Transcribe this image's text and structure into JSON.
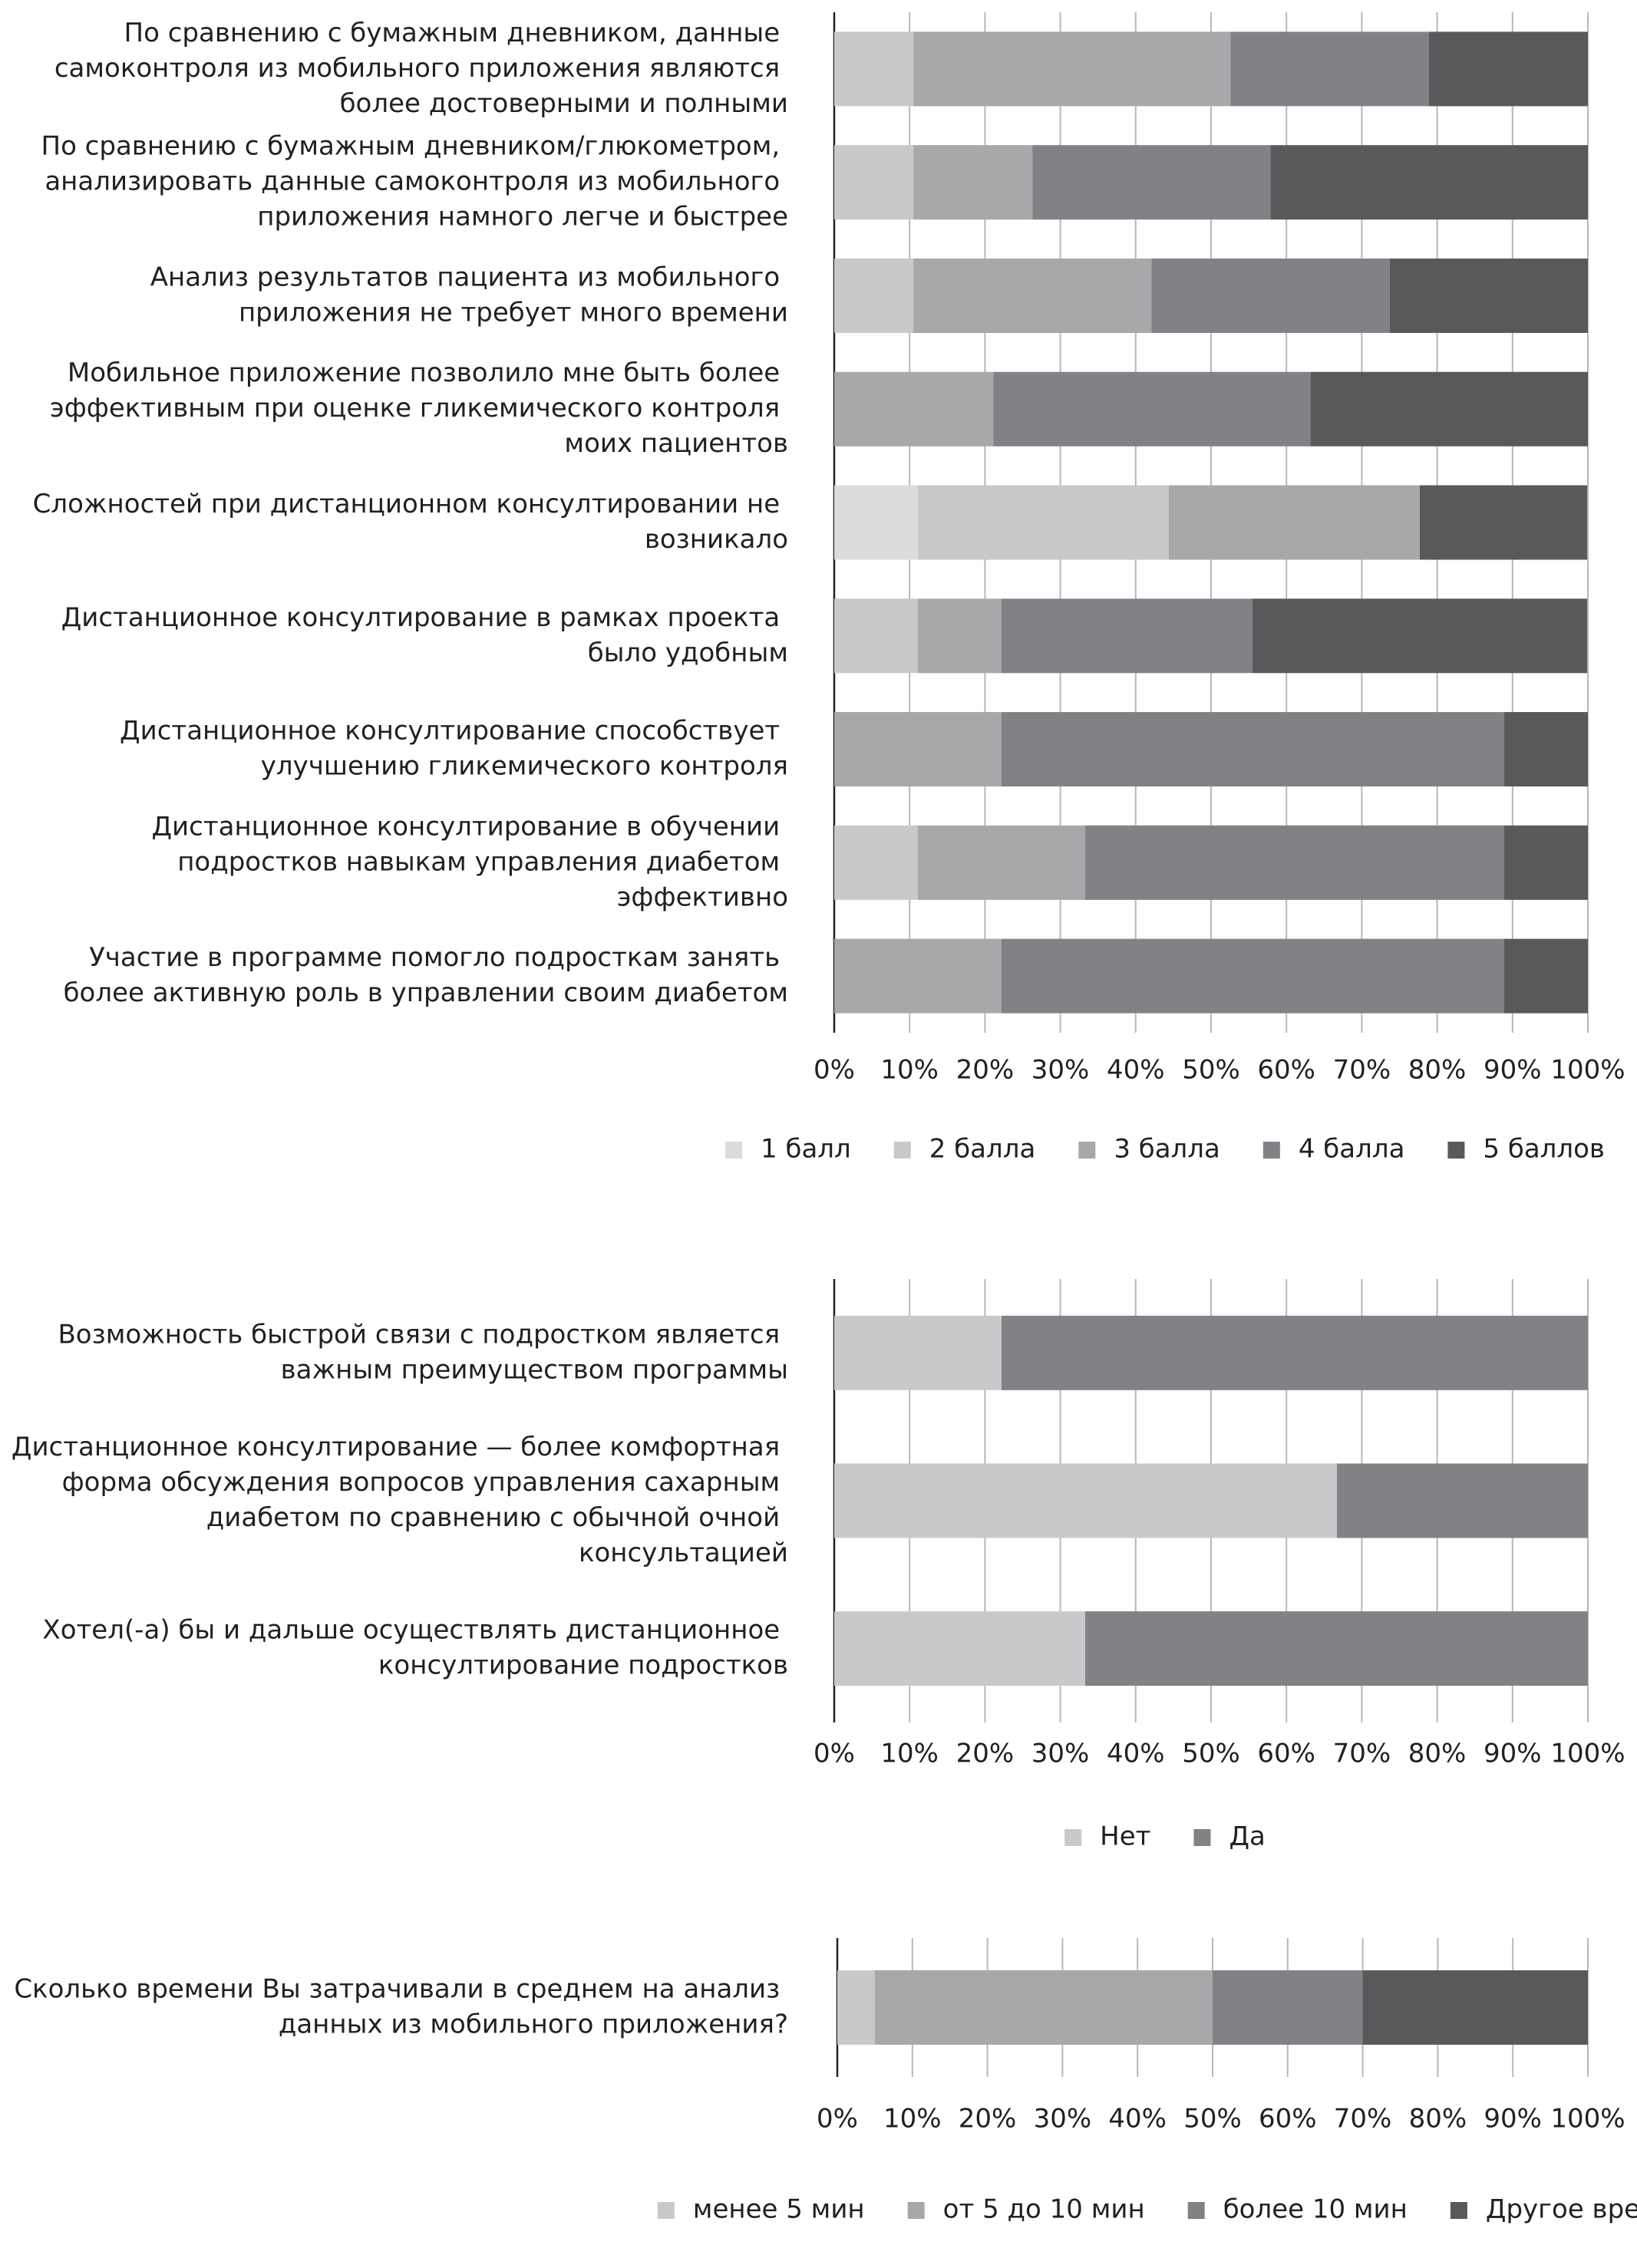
{
  "chart_data": [
    {
      "type": "bar",
      "orientation": "horizontal",
      "stacked": true,
      "grid": true,
      "categories": [
        "По сравнению с бумажным дневником, данные самоконтроля из мобильного приложения являются более достоверными и полными",
        "По сравнению с бумажным дневником/глюкометром, анализировать данные самоконтроля из мобильного приложения намного легче и быстрее",
        "Анализ результатов пациента из мобильного приложения не требует много времени",
        "Мобильное приложение  позволило мне быть более эффективным при оценке гликемического контроля моих пациентов",
        "Сложностей при дистанционном консултировании не возникало",
        "Дистанционное консултирование в рамках проекта было удобным",
        "Дистанционное консултирование способствует улучшению гликемического контроля",
        "Дистанционное консултирование в обучении подростков навыкам управления диабетом эффективно",
        "Участие в программе помогло подросткам занять более активную роль в управлении своим диабетом"
      ],
      "series": [
        {
          "name": "1 балл",
          "color": "#dcdcdd",
          "values": [
            0,
            0,
            0,
            0,
            11.1,
            0,
            0,
            0,
            0
          ]
        },
        {
          "name": "2 балла",
          "color": "#c8c9ca",
          "values": [
            10.5,
            10.5,
            10.5,
            0,
            33.3,
            11.1,
            0,
            11.1,
            0
          ]
        },
        {
          "name": "3 балла",
          "color": "#a7a8aa",
          "values": [
            42.1,
            15.8,
            31.6,
            21.1,
            33.3,
            11.1,
            22.2,
            22.2,
            22.2
          ]
        },
        {
          "name": "4 балла",
          "color": "#818285",
          "values": [
            26.3,
            31.6,
            31.6,
            42.1,
            0,
            33.3,
            66.7,
            55.6,
            66.7
          ]
        },
        {
          "name": "5 баллов",
          "color": "#58595b",
          "values": [
            21.1,
            42.1,
            26.3,
            36.8,
            22.2,
            44.4,
            11.1,
            11.1,
            11.1
          ]
        }
      ],
      "xlim": [
        0,
        100
      ],
      "xticks": [
        {
          "value": 0,
          "label": "0%"
        },
        {
          "value": 10,
          "label": "10%"
        },
        {
          "value": 20,
          "label": "20%"
        },
        {
          "value": 30,
          "label": "30%"
        },
        {
          "value": 40,
          "label": "40%"
        },
        {
          "value": 50,
          "label": "50%"
        },
        {
          "value": 60,
          "label": "60%"
        },
        {
          "value": 70,
          "label": "70%"
        },
        {
          "value": 80,
          "label": "80%"
        },
        {
          "value": 90,
          "label": "90%"
        },
        {
          "value": 100,
          "label": "100%"
        }
      ]
    },
    {
      "type": "bar",
      "orientation": "horizontal",
      "stacked": true,
      "grid": true,
      "categories": [
        "Возможность быстрой связи с подростком является важным преимуществом программы",
        "Дистанционное консултирование — более комфортная форма обсуждения вопросов управления сахарным диабетом по сравнению с обычной очной консультацией",
        "Хотел(-а) бы и дальше осуществлять дистанционное консултирование подростков"
      ],
      "series": [
        {
          "name": "Нет",
          "color": "#c8c9ca",
          "values": [
            22.2,
            66.7,
            33.3
          ]
        },
        {
          "name": "Да",
          "color": "#818285",
          "values": [
            77.8,
            33.3,
            66.7
          ]
        }
      ],
      "xlim": [
        0,
        100
      ],
      "xticks": [
        {
          "value": 0,
          "label": "0%"
        },
        {
          "value": 10,
          "label": "10%"
        },
        {
          "value": 20,
          "label": "20%"
        },
        {
          "value": 30,
          "label": "30%"
        },
        {
          "value": 40,
          "label": "40%"
        },
        {
          "value": 50,
          "label": "50%"
        },
        {
          "value": 60,
          "label": "60%"
        },
        {
          "value": 70,
          "label": "70%"
        },
        {
          "value": 80,
          "label": "80%"
        },
        {
          "value": 90,
          "label": "90%"
        },
        {
          "value": 100,
          "label": "100%"
        }
      ]
    },
    {
      "type": "bar",
      "orientation": "horizontal",
      "stacked": true,
      "grid": true,
      "categories": [
        "Сколько времени Вы затрачивали в среднем на анализ данных из мобильного приложения?"
      ],
      "series": [
        {
          "name": "менее 5 мин",
          "color": "#c8c9ca",
          "values": [
            5
          ]
        },
        {
          "name": "от 5 до 10 мин",
          "color": "#a7a8aa",
          "values": [
            45
          ]
        },
        {
          "name": "более 10 мин",
          "color": "#818285",
          "values": [
            20
          ]
        },
        {
          "name": "Другое время",
          "color": "#58595b",
          "values": [
            30
          ]
        }
      ],
      "xlim": [
        0,
        100
      ],
      "xticks": [
        {
          "value": 0,
          "label": "0%"
        },
        {
          "value": 10,
          "label": "10%"
        },
        {
          "value": 20,
          "label": "20%"
        },
        {
          "value": 30,
          "label": "30%"
        },
        {
          "value": 40,
          "label": "40%"
        },
        {
          "value": 50,
          "label": "50%"
        },
        {
          "value": 60,
          "label": "60%"
        },
        {
          "value": 70,
          "label": "70%"
        },
        {
          "value": 80,
          "label": "80%"
        },
        {
          "value": 90,
          "label": "90%"
        },
        {
          "value": 100,
          "label": "100%"
        }
      ]
    }
  ]
}
